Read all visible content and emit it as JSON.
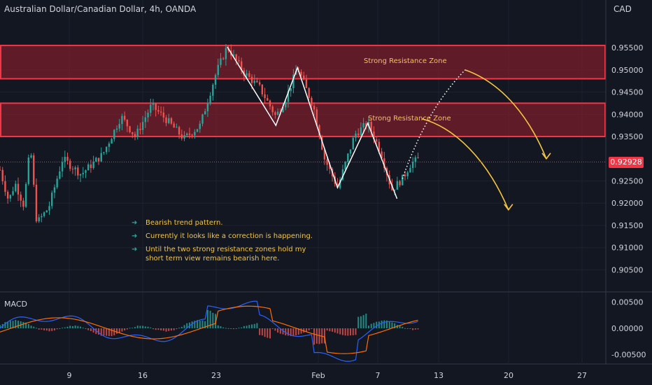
{
  "header": {
    "symbol": "Australian Dollar/Canadian Dollar, 4h, OANDA",
    "currency": "CAD"
  },
  "colors": {
    "background": "#131722",
    "up": "#26a69a",
    "down": "#ef5350",
    "zone_fill": "#7a1f2b",
    "zone_border": "#f23645",
    "annotation": "#f5c542",
    "price_tag": "#f23645",
    "macd_line": "#2962ff",
    "signal_line": "#ff6d00"
  },
  "zones": [
    {
      "label": "Strong Resistance Zone",
      "from": 0.948,
      "to": 0.9555
    },
    {
      "label": "Strong Resistance Zone",
      "from": 0.935,
      "to": 0.9425
    }
  ],
  "current_price": {
    "label": "0.92928",
    "value": 0.92928
  },
  "annotations": [
    "Bearish trend pattern.",
    "Currently it looks like a correction is happening.",
    "Until the two strong resistance zones hold my short term view remains bearish here."
  ],
  "macd": {
    "label": "MACD"
  },
  "chart_data": {
    "type": "candlestick",
    "price_axis": {
      "ylim": [
        0.9005,
        0.961
      ],
      "ticks": [
        "0.95500",
        "0.95000",
        "0.94500",
        "0.94000",
        "0.93500",
        "0.92500",
        "0.92000",
        "0.91500",
        "0.91000",
        "0.90500"
      ],
      "tick_values": [
        0.955,
        0.95,
        0.945,
        0.94,
        0.935,
        0.925,
        0.92,
        0.915,
        0.91,
        0.905
      ]
    },
    "macd_axis": {
      "ylim": [
        -0.0065,
        0.0065
      ],
      "ticks": [
        "0.00500",
        "0.00000",
        "-0.00500"
      ],
      "tick_values": [
        0.005,
        0.0,
        -0.005
      ]
    },
    "x_axis": {
      "labels": [
        "9",
        "16",
        "23",
        "Feb",
        "7",
        "13",
        "20",
        "27"
      ],
      "index": [
        0,
        0,
        0,
        0,
        0,
        0,
        0,
        0
      ]
    },
    "price_path": [
      [
        0,
        0.9275
      ],
      [
        8,
        0.9205
      ],
      [
        14,
        0.9245
      ],
      [
        22,
        0.9195
      ],
      [
        28,
        0.933
      ],
      [
        34,
        0.9155
      ],
      [
        45,
        0.919
      ],
      [
        58,
        0.93
      ],
      [
        75,
        0.9265
      ],
      [
        95,
        0.931
      ],
      [
        112,
        0.9395
      ],
      [
        125,
        0.935
      ],
      [
        140,
        0.942
      ],
      [
        155,
        0.9385
      ],
      [
        170,
        0.9345
      ],
      [
        185,
        0.9375
      ],
      [
        200,
        0.9495
      ],
      [
        210,
        0.9552
      ],
      [
        225,
        0.9495
      ],
      [
        240,
        0.946
      ],
      [
        255,
        0.9395
      ],
      [
        265,
        0.944
      ],
      [
        275,
        0.9505
      ],
      [
        290,
        0.9415
      ],
      [
        300,
        0.93
      ],
      [
        312,
        0.9235
      ],
      [
        328,
        0.9355
      ],
      [
        340,
        0.938
      ],
      [
        352,
        0.9315
      ],
      [
        362,
        0.923
      ],
      [
        372,
        0.9255
      ],
      [
        380,
        0.929
      ],
      [
        388,
        0.93
      ]
    ],
    "last_index": 388,
    "index_span": 560,
    "projections": [
      {
        "points": [
          [
            372,
            0.9255
          ],
          [
            390,
            0.938
          ],
          [
            410,
            0.945
          ],
          [
            430,
            0.95
          ]
        ],
        "style": "dotted"
      },
      {
        "points": [
          [
            430,
            0.95
          ],
          [
            465,
            0.947
          ],
          [
            490,
            0.939
          ],
          [
            505,
            0.93
          ]
        ],
        "style": "solid"
      },
      {
        "points": [
          [
            390,
            0.939
          ],
          [
            420,
            0.937
          ],
          [
            450,
            0.93
          ],
          [
            470,
            0.9185
          ]
        ],
        "style": "solid"
      }
    ]
  }
}
